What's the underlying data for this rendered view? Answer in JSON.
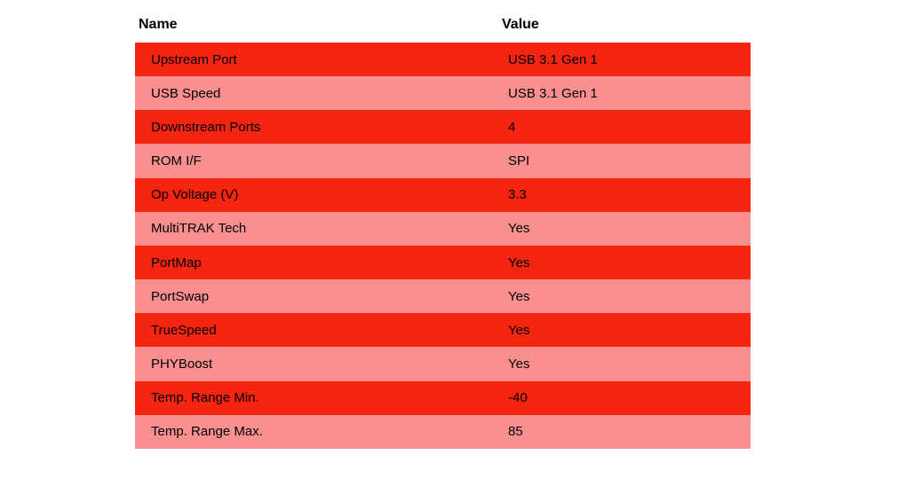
{
  "colors": {
    "page_bg": "#ffffff",
    "row_bright": "#f52510",
    "row_light": "#fa8f8f",
    "header_text": "#000000",
    "row_text": "#000000"
  },
  "table": {
    "columns": [
      {
        "label": "Name"
      },
      {
        "label": "Value"
      }
    ],
    "rows": [
      {
        "name": "Upstream Port",
        "value": "USB 3.1 Gen 1"
      },
      {
        "name": "USB Speed",
        "value": "USB 3.1 Gen 1"
      },
      {
        "name": "Downstream Ports",
        "value": "4"
      },
      {
        "name": "ROM I/F",
        "value": "SPI"
      },
      {
        "name": "Op Voltage (V)",
        "value": "3.3"
      },
      {
        "name": "MultiTRAK Tech",
        "value": "Yes"
      },
      {
        "name": "PortMap",
        "value": "Yes"
      },
      {
        "name": "PortSwap",
        "value": "Yes"
      },
      {
        "name": "TrueSpeed",
        "value": "Yes"
      },
      {
        "name": "PHYBoost",
        "value": "Yes"
      },
      {
        "name": "Temp. Range Min.",
        "value": "-40"
      },
      {
        "name": "Temp. Range Max.",
        "value": "85"
      }
    ]
  }
}
